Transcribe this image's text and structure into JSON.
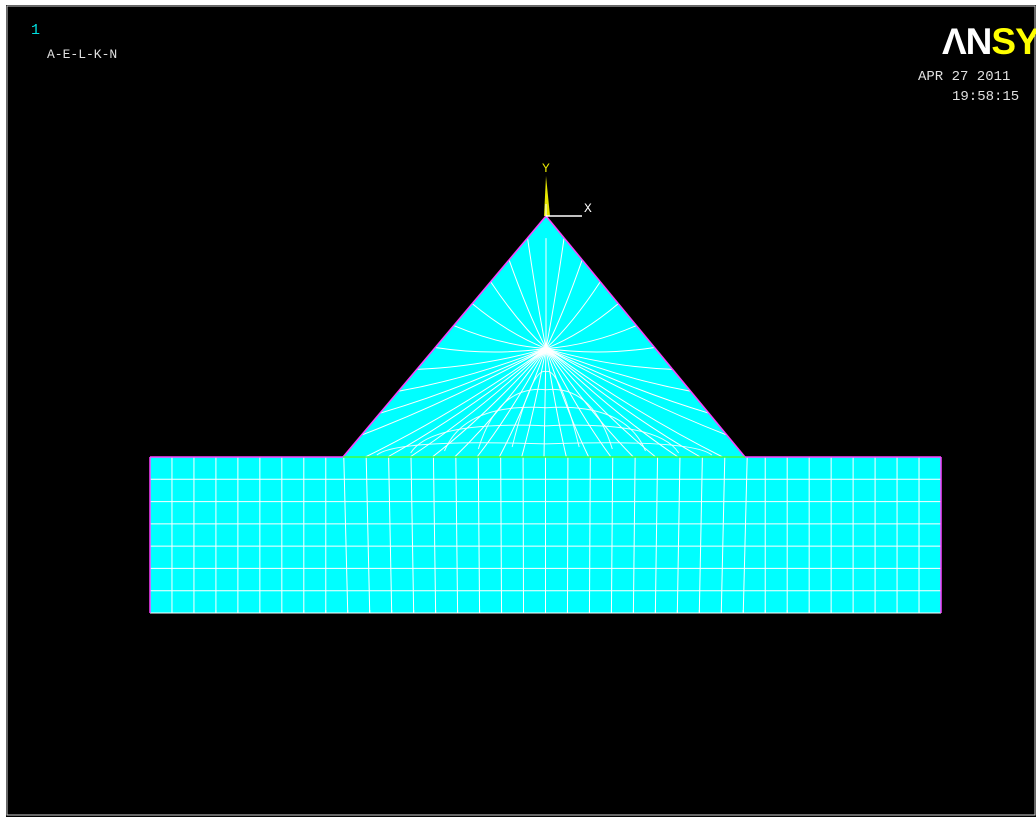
{
  "window": {
    "number": "1",
    "plot_label": "A-E-L-K-N"
  },
  "logo": {
    "prefix": "ΛN",
    "suffix": "SY"
  },
  "timestamp": {
    "date": "APR 27 2011",
    "time": "19:58:15"
  },
  "axis_triad": {
    "y_label": "Y",
    "x_label": "X"
  },
  "colors": {
    "background": "#000000",
    "border": "#d0d0d0",
    "window_number": "#00e0e0",
    "label_text": "#e0e0e0",
    "logo_white": "#ffffff",
    "logo_yellow": "#ffff00",
    "mesh_fill": "#00ffff",
    "mesh_lines": "#ffffff",
    "axis_y_color": "#e8e800",
    "axis_x_color": "#ffffff",
    "area_boundary_magenta": "#ff40ff",
    "area_boundary_green": "#40ff40"
  }
}
